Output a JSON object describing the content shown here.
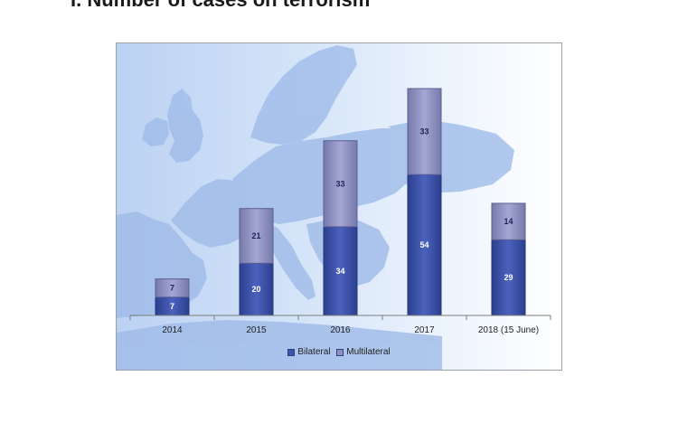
{
  "page": {
    "heading": "I.   Number of cases on terrorism"
  },
  "chart_data": {
    "type": "bar",
    "stacked": true,
    "categories": [
      "2014",
      "2015",
      "2016",
      "2017",
      "2018 (15 June)"
    ],
    "series": [
      {
        "name": "Bilateral",
        "values": [
          7,
          20,
          34,
          54,
          29
        ],
        "color": "#3f55ad"
      },
      {
        "name": "Multilateral",
        "values": [
          7,
          21,
          33,
          33,
          14
        ],
        "color": "#8e91c0"
      }
    ],
    "ylim": [
      0,
      87
    ],
    "grid": false,
    "legend_position": "bottom",
    "background": "map-of-europe"
  }
}
